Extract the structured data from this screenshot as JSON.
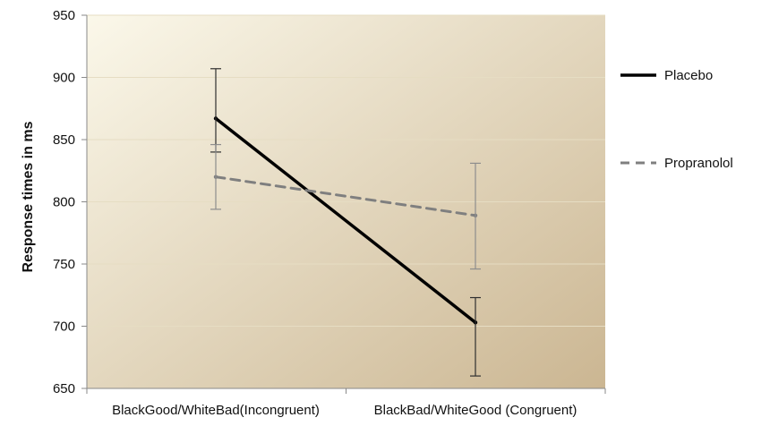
{
  "chart_data": {
    "type": "line",
    "title": "",
    "xlabel": "",
    "ylabel": "Response times in ms",
    "ylim": [
      650,
      950
    ],
    "yticks": [
      650,
      700,
      750,
      800,
      850,
      900,
      950
    ],
    "categories": [
      "BlackGood/WhiteBad(Incongruent)",
      "BlackBad/WhiteGood (Congruent)"
    ],
    "series": [
      {
        "name": "Placebo",
        "values": [
          867,
          703
        ],
        "error_upper": [
          907,
          723
        ],
        "error_lower": [
          840,
          660
        ],
        "color": "#000000",
        "line_style": "solid"
      },
      {
        "name": "Propranolol",
        "values": [
          820,
          789
        ],
        "error_upper": [
          846,
          831
        ],
        "error_lower": [
          794,
          746
        ],
        "color": "#7f7f7f",
        "line_style": "dashed"
      }
    ],
    "legend_position": "right",
    "grid": true,
    "background": {
      "start": "#fbf8ea",
      "end": "#cbb692"
    },
    "grid_color": "#e6ddc3",
    "axis_color": "#8a8a8a"
  }
}
